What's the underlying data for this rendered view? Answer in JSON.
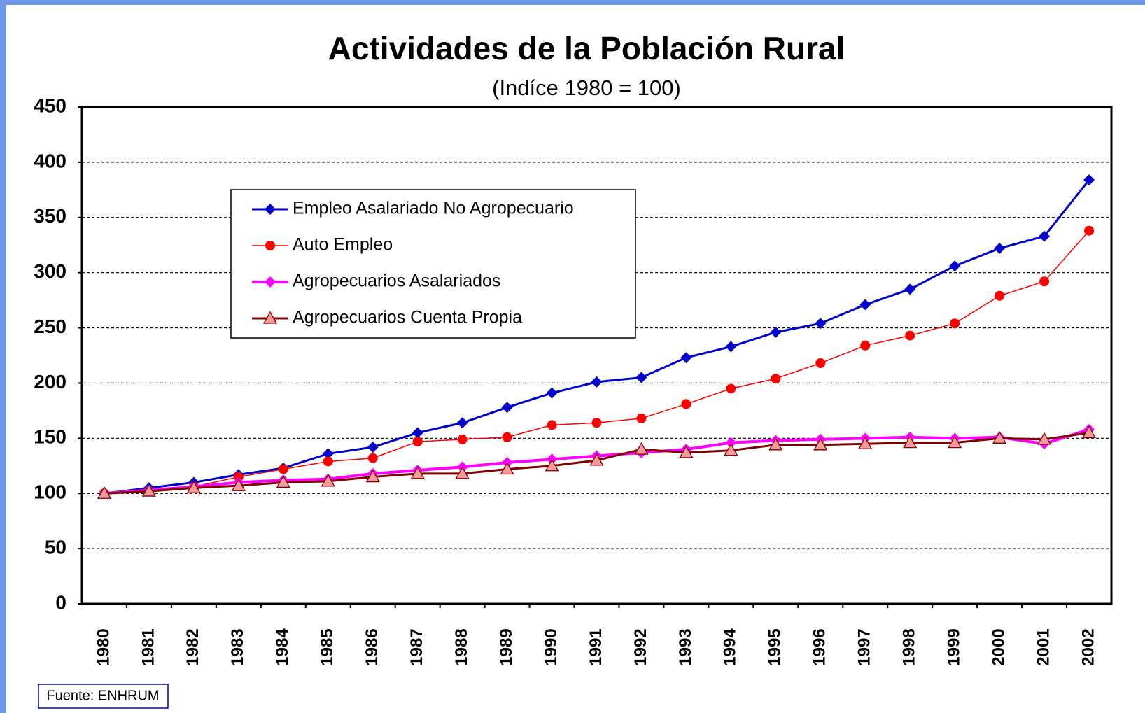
{
  "chart_data": {
    "type": "line",
    "title": "Actividades de la Población Rural",
    "subtitle": "(Indíce 1980 = 100)",
    "source": "Fuente: ENHRUM",
    "categories": [
      "1980",
      "1981",
      "1982",
      "1983",
      "1984",
      "1985",
      "1986",
      "1987",
      "1988",
      "1989",
      "1990",
      "1991",
      "1992",
      "1993",
      "1994",
      "1995",
      "1996",
      "1997",
      "1998",
      "1999",
      "2000",
      "2001",
      "2002"
    ],
    "ylim": [
      0,
      450
    ],
    "yticks": [
      0,
      50,
      100,
      150,
      200,
      250,
      300,
      350,
      400,
      450
    ],
    "grid": true,
    "series": [
      {
        "name": "Empleo Asalariado No Agropecuario",
        "color": "#0000cc",
        "marker": "diamond",
        "values": [
          100,
          105,
          110,
          117,
          123,
          136,
          142,
          155,
          164,
          178,
          191,
          201,
          205,
          223,
          233,
          246,
          254,
          271,
          285,
          306,
          322,
          333,
          384
        ]
      },
      {
        "name": "Auto Empleo",
        "color": "#ff0000",
        "marker": "circle",
        "values": [
          100,
          102,
          106,
          115,
          122,
          129,
          132,
          147,
          149,
          151,
          162,
          164,
          168,
          181,
          195,
          204,
          218,
          234,
          243,
          254,
          279,
          292,
          338
        ]
      },
      {
        "name": "Agropecuarios Asalariados",
        "color": "#ff00ff",
        "marker": "diamond",
        "values": [
          100,
          103,
          106,
          110,
          112,
          113,
          118,
          121,
          124,
          128,
          131,
          134,
          137,
          140,
          146,
          148,
          149,
          150,
          151,
          150,
          151,
          145,
          158
        ]
      },
      {
        "name": "Agropecuarios Cuenta Propia",
        "color": "#800000",
        "marker": "triangle",
        "values": [
          100,
          102,
          105,
          107,
          110,
          111,
          115,
          118,
          118,
          122,
          125,
          130,
          140,
          137,
          139,
          144,
          144,
          145,
          146,
          146,
          150,
          149,
          155
        ]
      }
    ]
  }
}
